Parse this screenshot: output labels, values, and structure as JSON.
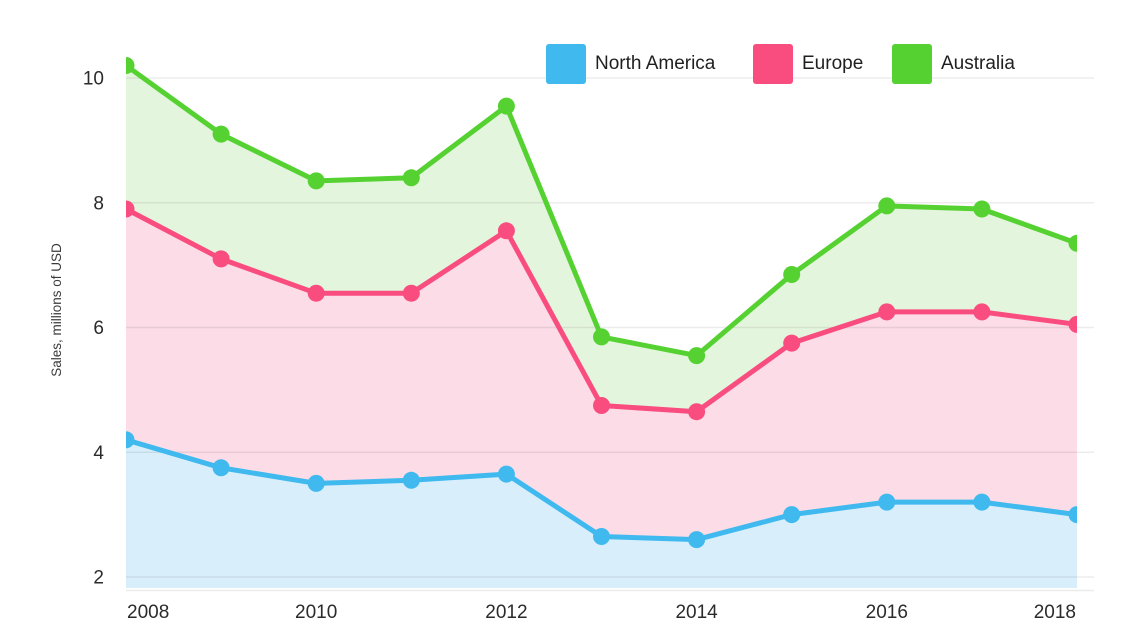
{
  "chart_data": {
    "type": "area",
    "title": "",
    "ylabel": "Sales, millions of USD",
    "xlabel": "",
    "categories": [
      "2008",
      "2009",
      "2010",
      "2011",
      "2012",
      "2013",
      "2014",
      "2015",
      "2016",
      "2017",
      "2018"
    ],
    "x_tick_labels": [
      "2008",
      "2010",
      "2012",
      "2014",
      "2016",
      "2018"
    ],
    "y_ticks": [
      10,
      8,
      6,
      4,
      2
    ],
    "ylim": [
      2,
      10
    ],
    "grid": true,
    "legend_position": "top",
    "series": [
      {
        "name": "North America",
        "color": "#40b9ef",
        "fill": "#d9eefb",
        "values": [
          4.2,
          3.75,
          3.5,
          3.55,
          3.65,
          2.65,
          2.6,
          3.0,
          3.2,
          3.2,
          3.0
        ]
      },
      {
        "name": "Europe",
        "color": "#f94d80",
        "fill": "#fbdce7",
        "values": [
          7.9,
          7.1,
          6.55,
          6.55,
          7.55,
          4.75,
          4.65,
          5.75,
          6.25,
          6.25,
          6.05
        ]
      },
      {
        "name": "Australia",
        "color": "#55d231",
        "fill": "#e4f5dd",
        "values": [
          10.2,
          9.1,
          8.35,
          8.4,
          9.55,
          5.85,
          5.55,
          6.85,
          7.95,
          7.9,
          7.35
        ]
      }
    ]
  }
}
